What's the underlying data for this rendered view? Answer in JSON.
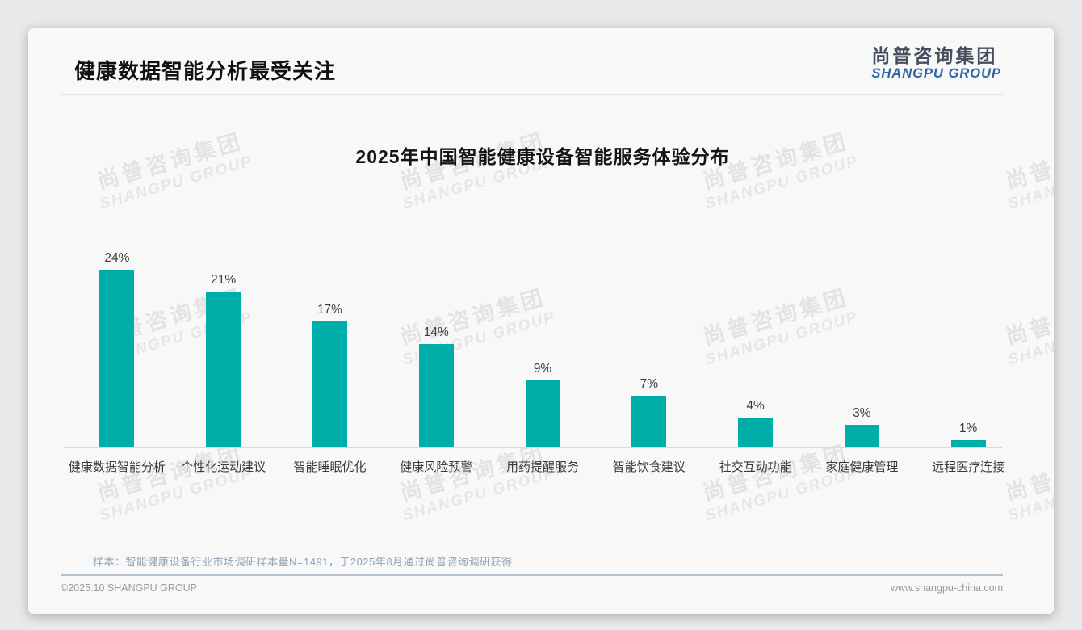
{
  "page": {
    "title": "健康数据智能分析最受关注",
    "logo": {
      "cn": "尚普咨询集团",
      "en": "SHANGPU GROUP"
    },
    "watermark": {
      "cn": "尚普咨询集团",
      "en": "SHANGPU GROUP"
    },
    "sample_note": "样本：智能健康设备行业市场调研样本量N=1491，于2025年8月通过尚普咨询调研获得",
    "footer": {
      "copyright": "©2025.10 SHANGPU GROUP",
      "website": "www.shangpu-china.com"
    },
    "colors": {
      "bar": "#00AEA9",
      "logo_blue": "#2f64a7",
      "logo_dark": "#454e5c",
      "note_gray_blue": "#93a2b4"
    }
  },
  "chart_data": {
    "type": "bar",
    "title": "2025年中国智能健康设备智能服务体验分布",
    "categories": [
      "健康数据智能分析",
      "个性化运动建议",
      "智能睡眠优化",
      "健康风险预警",
      "用药提醒服务",
      "智能饮食建议",
      "社交互动功能",
      "家庭健康管理",
      "远程医疗连接"
    ],
    "values": [
      24,
      21,
      17,
      14,
      9,
      7,
      4,
      3,
      1
    ],
    "value_labels": [
      "24%",
      "21%",
      "17%",
      "14%",
      "9%",
      "7%",
      "4%",
      "3%",
      "1%"
    ],
    "unit": "%",
    "xlabel": "",
    "ylabel": "",
    "ylim": [
      0,
      26
    ],
    "grid": false,
    "legend": null,
    "bar_color": "#00AEA9"
  }
}
